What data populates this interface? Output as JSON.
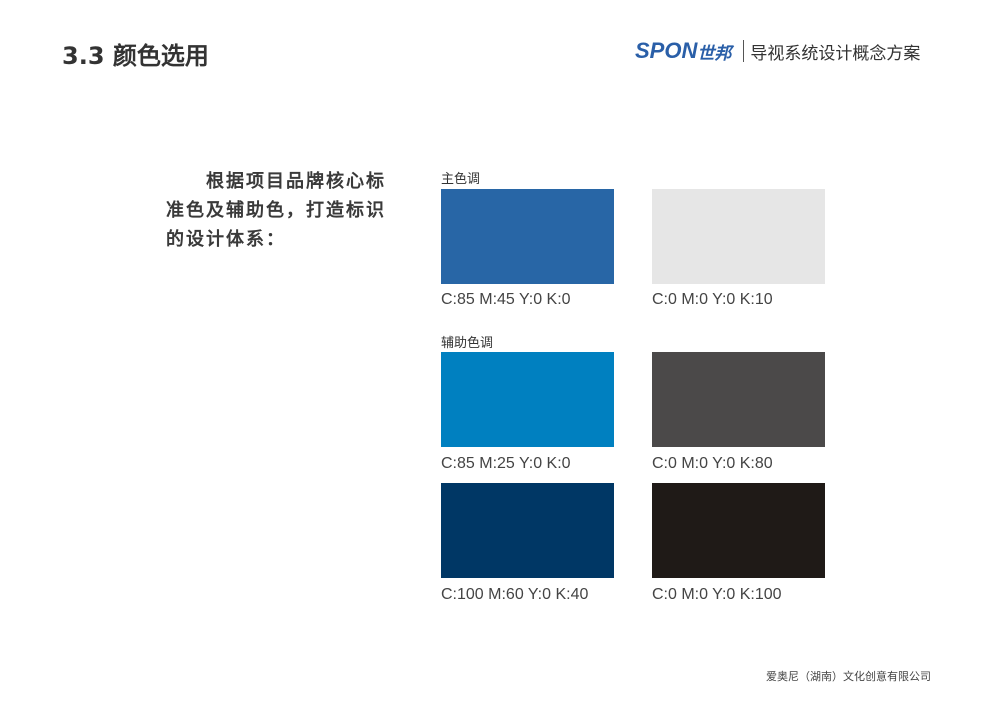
{
  "header": {
    "title": "3.3 颜色选用",
    "brand": "SPON",
    "brand_cn": "世邦",
    "project": "导视系统设计概念方案"
  },
  "intro": "根据项目品牌核心标准色及辅助色，打造标识的设计体系：",
  "primary": {
    "label": "主色调",
    "swatches": [
      {
        "cmyk": "C:85 M:45 Y:0 K:0",
        "color": "#2866a6"
      },
      {
        "cmyk": "C:0 M:0 Y:0 K:10",
        "color": "#e6e6e6"
      }
    ]
  },
  "secondary": {
    "label": "辅助色调",
    "swatches": [
      {
        "cmyk": "C:85 M:25 Y:0 K:0",
        "color": "#0080c0"
      },
      {
        "cmyk": "C:0 M:0 Y:0 K:80",
        "color": "#4b4949"
      },
      {
        "cmyk": "C:100 M:60 Y:0 K:40",
        "color": "#003765"
      },
      {
        "cmyk": "C:0 M:0 Y:0 K:100",
        "color": "#1f1a17"
      }
    ]
  },
  "footer": "爱奥尼（湖南）文化创意有限公司"
}
